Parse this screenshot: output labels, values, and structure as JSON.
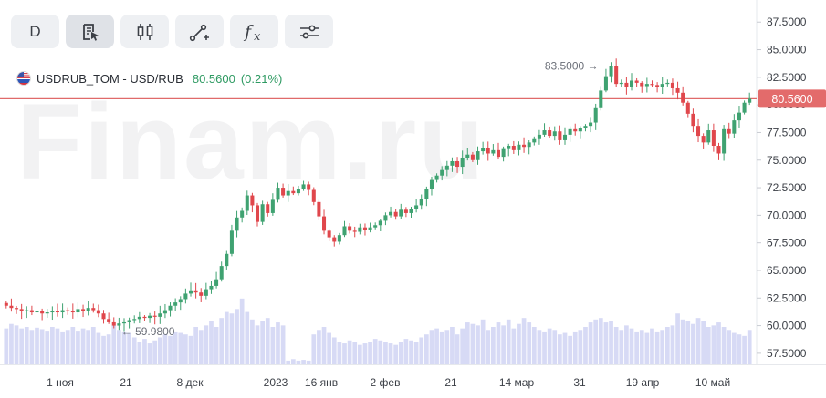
{
  "watermark": "Finam.ru",
  "toolbar": {
    "period_label": "D",
    "buttons": [
      {
        "name": "period-button",
        "icon": "text-d"
      },
      {
        "name": "indicators-button",
        "icon": "document-cursor-icon"
      },
      {
        "name": "candles-button",
        "icon": "candles-icon"
      },
      {
        "name": "drawing-tools-button",
        "icon": "line-tool-icon"
      },
      {
        "name": "function-button",
        "icon": "fx-icon"
      },
      {
        "name": "settings-button",
        "icon": "sliders-icon"
      }
    ]
  },
  "legend": {
    "instrument": "USDRUB_TOM - USD/RUB",
    "price": "80.5600",
    "change": "(0.21%)"
  },
  "chart_data": {
    "type": "candlestick",
    "y_ticks": [
      "57.5000",
      "60.0000",
      "62.5000",
      "65.0000",
      "67.5000",
      "70.0000",
      "72.5000",
      "75.0000",
      "77.5000",
      "80.0000",
      "82.5000",
      "85.0000",
      "87.5000"
    ],
    "ylim": [
      56.5,
      89.5
    ],
    "x_ticks": [
      "1 ноя",
      "21",
      "8 дек",
      "2023",
      "16 янв",
      "2 фев",
      "21",
      "14 мар",
      "31",
      "19 апр",
      "10 май"
    ],
    "current_price": 80.56,
    "current_price_label": "80.5600",
    "annotations": [
      {
        "label": "83.5000",
        "value": 83.5,
        "type": "high"
      },
      {
        "label": "59.9800",
        "value": 59.98,
        "type": "low"
      }
    ],
    "colors": {
      "up": "#3fa271",
      "down": "#e0474c",
      "volume": "#c9cdf2",
      "price_line": "#e06a6a"
    },
    "closes": [
      61.8,
      61.6,
      61.5,
      61.3,
      61.4,
      61.2,
      61.3,
      61.1,
      61.2,
      61.3,
      61.2,
      61.4,
      61.3,
      61.2,
      61.5,
      61.3,
      61.6,
      61.4,
      61.1,
      60.6,
      60.3,
      60.0,
      60.2,
      60.3,
      60.5,
      60.6,
      60.8,
      60.7,
      60.9,
      60.8,
      61.1,
      61.4,
      61.8,
      62.1,
      62.4,
      62.9,
      63.2,
      63.0,
      62.7,
      63.3,
      63.6,
      64.2,
      65.4,
      66.5,
      68.6,
      69.8,
      70.4,
      71.8,
      70.9,
      69.4,
      71.0,
      70.2,
      71.4,
      72.5,
      71.8,
      72.2,
      72.0,
      72.4,
      72.8,
      72.3,
      71.2,
      69.9,
      68.6,
      68.0,
      67.6,
      68.2,
      69.0,
      68.6,
      68.5,
      68.9,
      68.7,
      68.9,
      69.1,
      69.5,
      70.0,
      70.3,
      69.9,
      70.5,
      70.2,
      70.6,
      70.9,
      71.5,
      72.4,
      73.2,
      73.6,
      74.1,
      74.5,
      74.9,
      74.4,
      75.2,
      75.5,
      75.0,
      75.8,
      76.1,
      75.6,
      75.9,
      75.3,
      76.0,
      76.3,
      75.9,
      76.4,
      76.2,
      76.6,
      76.9,
      77.3,
      77.7,
      77.2,
      77.6,
      76.8,
      77.3,
      77.8,
      77.6,
      77.9,
      78.1,
      78.4,
      79.7,
      81.3,
      82.6,
      83.5,
      81.9,
      82.0,
      81.6,
      82.2,
      82.0,
      81.7,
      81.9,
      81.8,
      81.6,
      81.9,
      82.0,
      81.5,
      81.1,
      80.2,
      79.2,
      78.1,
      77.2,
      76.6,
      77.7,
      76.3,
      75.6,
      77.8,
      77.4,
      78.6,
      79.3,
      80.2,
      80.56
    ],
    "volumes": [
      0.48,
      0.54,
      0.52,
      0.48,
      0.5,
      0.46,
      0.49,
      0.47,
      0.45,
      0.5,
      0.48,
      0.44,
      0.46,
      0.5,
      0.45,
      0.48,
      0.46,
      0.5,
      0.42,
      0.38,
      0.4,
      0.52,
      0.46,
      0.44,
      0.42,
      0.36,
      0.3,
      0.34,
      0.28,
      0.32,
      0.36,
      0.4,
      0.38,
      0.44,
      0.42,
      0.4,
      0.38,
      0.5,
      0.46,
      0.52,
      0.58,
      0.5,
      0.62,
      0.7,
      0.68,
      0.74,
      0.88,
      0.7,
      0.6,
      0.52,
      0.58,
      0.62,
      0.5,
      0.56,
      0.52,
      0.05,
      0.07,
      0.05,
      0.06,
      0.05,
      0.4,
      0.46,
      0.5,
      0.42,
      0.36,
      0.3,
      0.28,
      0.32,
      0.3,
      0.26,
      0.28,
      0.3,
      0.34,
      0.32,
      0.3,
      0.28,
      0.26,
      0.3,
      0.34,
      0.32,
      0.3,
      0.36,
      0.4,
      0.46,
      0.48,
      0.44,
      0.46,
      0.5,
      0.4,
      0.48,
      0.56,
      0.54,
      0.52,
      0.6,
      0.46,
      0.5,
      0.56,
      0.52,
      0.6,
      0.48,
      0.54,
      0.62,
      0.56,
      0.5,
      0.46,
      0.44,
      0.48,
      0.46,
      0.4,
      0.42,
      0.38,
      0.44,
      0.46,
      0.5,
      0.56,
      0.6,
      0.62,
      0.56,
      0.58,
      0.5,
      0.46,
      0.52,
      0.48,
      0.44,
      0.46,
      0.42,
      0.48,
      0.44,
      0.46,
      0.5,
      0.52,
      0.68,
      0.6,
      0.58,
      0.54,
      0.62,
      0.58,
      0.5,
      0.52,
      0.56,
      0.5,
      0.46,
      0.42,
      0.4,
      0.38,
      0.46
    ]
  }
}
